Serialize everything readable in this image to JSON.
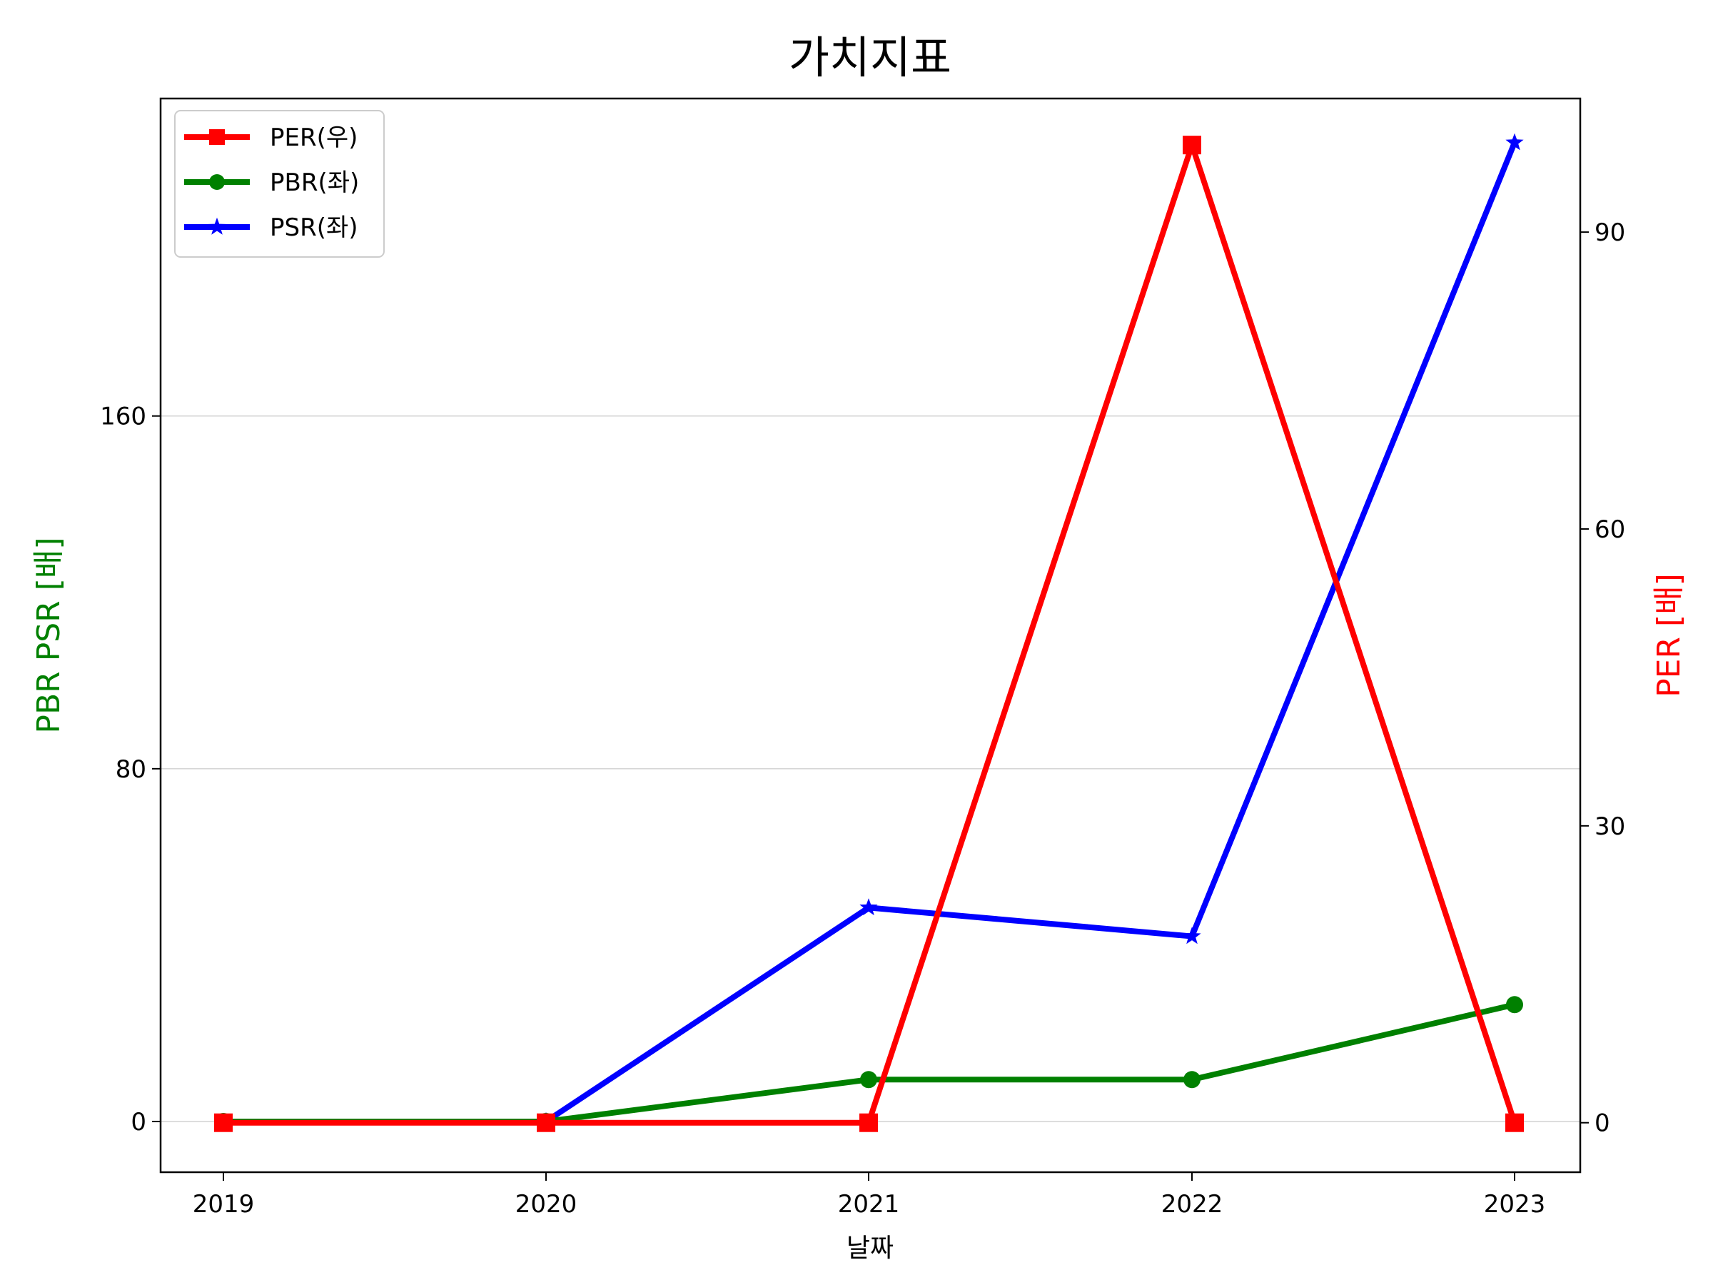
{
  "chart_data": {
    "type": "line",
    "title": "가치지표",
    "xlabel": "날짜",
    "ylabel_left": "PBR PSR [배]",
    "ylabel_right": "PER [배]",
    "ylabel_left_color": "#008000",
    "ylabel_right_color": "#ff0000",
    "categories": [
      "2019",
      "2020",
      "2021",
      "2022",
      "2023"
    ],
    "y_left": {
      "ticks": [
        "0",
        "80",
        "160"
      ],
      "tick_values": [
        0,
        80,
        160
      ],
      "lim": [
        -11.5,
        232
      ],
      "grid": true
    },
    "y_right": {
      "ticks": [
        "0",
        "30",
        "60",
        "90"
      ],
      "tick_values": [
        0,
        30,
        60,
        90
      ],
      "lim": [
        -5,
        103.5
      ]
    },
    "legend_position": "upper-left",
    "series": [
      {
        "name": "PER(우)",
        "axis": "right",
        "color": "#ff0000",
        "marker": "square",
        "values": [
          0,
          0,
          0,
          98.8,
          0
        ]
      },
      {
        "name": "PBR(좌)",
        "axis": "left",
        "color": "#008000",
        "marker": "circle",
        "values": [
          0,
          0,
          9.5,
          9.5,
          26.5
        ]
      },
      {
        "name": "PSR(좌)",
        "axis": "left",
        "color": "#0000ff",
        "marker": "star",
        "values": [
          null,
          0,
          48.5,
          42,
          222
        ]
      }
    ]
  }
}
